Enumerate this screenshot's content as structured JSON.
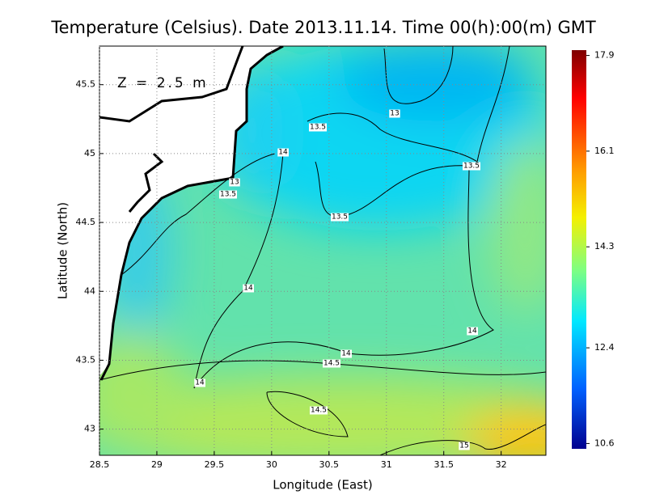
{
  "chart_data": {
    "type": "heatmap",
    "title": "Temperature (Celsius). Date 2013.11.14. Time 00(h):00(m) GMT",
    "x_label": "Longitude (East)",
    "y_label": "Latitude (North)",
    "annotation": "Z = 2.5 m",
    "xlim": [
      28.5,
      32.39
    ],
    "xticks": [
      28.5,
      29,
      29.5,
      30,
      30.5,
      31,
      31.5,
      32
    ],
    "ylim": [
      42.81,
      45.78
    ],
    "yticks": [
      43,
      43.5,
      44,
      44.5,
      45,
      45.5
    ],
    "grid": true,
    "contour_labels": [
      13,
      13.5,
      14,
      13.5,
      13,
      13.5,
      13.5,
      14,
      14,
      14,
      14.5,
      14,
      14.5,
      15
    ],
    "colorbar": {
      "lim": [
        10.5,
        18.0
      ],
      "ticks": [
        10.6,
        12.4,
        14.3,
        16.1,
        17.9
      ]
    }
  }
}
